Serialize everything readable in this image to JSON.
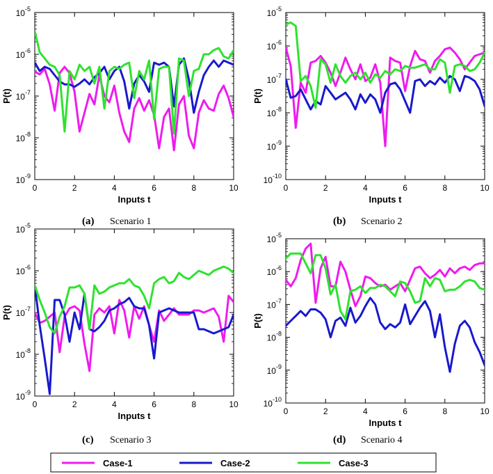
{
  "chart_data": [
    {
      "type": "line",
      "panel": "a",
      "caption_letter": "(a)",
      "caption": "Scenario 1",
      "xlabel": "Inputs t",
      "ylabel": "P(t)",
      "yscale": "log",
      "xlim": [
        0,
        10
      ],
      "ylim_exp": [
        -9,
        -5
      ],
      "xticks": [
        "0",
        "2",
        "4",
        "6",
        "8",
        "10"
      ],
      "yticks_exp": [
        "-9",
        "-8",
        "-7",
        "-6",
        "-5"
      ],
      "x": [
        0,
        0.25,
        0.5,
        0.75,
        1,
        1.25,
        1.5,
        1.75,
        2,
        2.25,
        2.5,
        2.75,
        3,
        3.25,
        3.5,
        3.75,
        4,
        4.25,
        4.5,
        4.75,
        5,
        5.25,
        5.5,
        5.75,
        6,
        6.25,
        6.5,
        6.75,
        7,
        7.25,
        7.5,
        7.75,
        8,
        8.25,
        8.5,
        8.75,
        9,
        9.25,
        9.5,
        9.75,
        10
      ],
      "series": [
        {
          "name": "Case-1",
          "log10": [
            -6.42,
            -6.48,
            -6.35,
            -6.72,
            -7.35,
            -6.45,
            -6.3,
            -6.45,
            -6.9,
            -7.85,
            -7.4,
            -6.95,
            -7.2,
            -6.5,
            -7.0,
            -7.15,
            -6.75,
            -7.4,
            -7.85,
            -8.1,
            -7.3,
            -7.05,
            -7.35,
            -7.1,
            -7.45,
            -8.25,
            -7.5,
            -7.3,
            -8.3,
            -7.2,
            -7.0,
            -7.95,
            -8.25,
            -7.4,
            -7.1,
            -7.3,
            -7.35,
            -6.95,
            -6.75,
            -7.05,
            -7.5
          ]
        },
        {
          "name": "Case-2",
          "log10": [
            -6.2,
            -6.4,
            -6.3,
            -6.35,
            -6.5,
            -6.65,
            -6.72,
            -6.72,
            -6.78,
            -6.7,
            -6.6,
            -6.72,
            -6.55,
            -6.45,
            -6.3,
            -6.6,
            -6.4,
            -6.3,
            -6.65,
            -7.3,
            -6.7,
            -6.5,
            -6.65,
            -6.9,
            -6.2,
            -6.25,
            -6.2,
            -6.3,
            -7.25,
            -6.25,
            -6.1,
            -6.6,
            -7.4,
            -6.9,
            -6.5,
            -6.3,
            -6.15,
            -6.3,
            -6.15,
            -6.2,
            -6.25
          ]
        },
        {
          "name": "Case-3",
          "log10": [
            -5.45,
            -5.95,
            -6.1,
            -6.25,
            -6.3,
            -6.5,
            -7.85,
            -6.4,
            -6.6,
            -6.25,
            -6.4,
            -6.3,
            -6.7,
            -6.3,
            -7.3,
            -6.4,
            -6.3,
            -6.35,
            -6.25,
            -6.2,
            -7.05,
            -6.4,
            -6.6,
            -6.15,
            -7.55,
            -6.35,
            -6.3,
            -6.3,
            -7.9,
            -6.1,
            -6.15,
            -7.0,
            -6.4,
            -6.35,
            -6.0,
            -6.0,
            -5.9,
            -5.85,
            -6.05,
            -6.1,
            -5.9
          ]
        }
      ]
    },
    {
      "type": "line",
      "panel": "b",
      "caption_letter": "(b)",
      "caption": "Scenario 2",
      "xlabel": "Inputs t",
      "ylabel": "P(t)",
      "yscale": "log",
      "xlim": [
        0,
        10
      ],
      "ylim_exp": [
        -10,
        -5
      ],
      "xticks": [
        "0",
        "2",
        "4",
        "6",
        "8",
        "10"
      ],
      "yticks_exp": [
        "-10",
        "-9",
        "-8",
        "-7",
        "-6",
        "-5"
      ],
      "x": [
        0,
        0.25,
        0.5,
        0.75,
        1,
        1.25,
        1.5,
        1.75,
        2,
        2.25,
        2.5,
        2.75,
        3,
        3.25,
        3.5,
        3.75,
        4,
        4.25,
        4.5,
        4.75,
        5,
        5.25,
        5.5,
        5.75,
        6,
        6.25,
        6.5,
        6.75,
        7,
        7.25,
        7.5,
        7.75,
        8,
        8.25,
        8.5,
        8.75,
        9,
        9.25,
        9.5,
        9.75,
        10
      ],
      "series": [
        {
          "name": "Case-1",
          "log10": [
            -6.05,
            -6.6,
            -8.45,
            -7.1,
            -7.4,
            -6.5,
            -6.45,
            -6.3,
            -6.5,
            -6.8,
            -7.2,
            -6.8,
            -6.35,
            -6.7,
            -7.0,
            -6.55,
            -7.05,
            -6.95,
            -6.55,
            -7.1,
            -9.0,
            -6.35,
            -6.45,
            -6.5,
            -7.35,
            -6.6,
            -6.15,
            -6.4,
            -6.45,
            -6.8,
            -6.45,
            -6.3,
            -6.1,
            -6.05,
            -6.2,
            -6.4,
            -6.7,
            -6.5,
            -6.3,
            -6.25,
            -6.2
          ]
        },
        {
          "name": "Case-2",
          "log10": [
            -7.0,
            -7.55,
            -7.5,
            -7.3,
            -7.6,
            -7.9,
            -7.65,
            -7.75,
            -7.2,
            -7.4,
            -7.6,
            -7.5,
            -7.4,
            -7.6,
            -7.9,
            -7.45,
            -7.7,
            -7.45,
            -7.6,
            -8.0,
            -7.4,
            -7.15,
            -7.1,
            -7.3,
            -7.65,
            -8.0,
            -7.05,
            -7.0,
            -7.2,
            -7.05,
            -7.15,
            -6.95,
            -7.1,
            -6.9,
            -7.0,
            -7.35,
            -6.9,
            -6.95,
            -7.05,
            -7.3,
            -7.8
          ]
        },
        {
          "name": "Case-3",
          "log10": [
            -5.35,
            -5.3,
            -5.4,
            -7.05,
            -6.9,
            -7.2,
            -7.85,
            -6.4,
            -6.55,
            -7.1,
            -6.55,
            -6.9,
            -7.1,
            -6.9,
            -6.8,
            -7.0,
            -6.8,
            -7.1,
            -6.85,
            -6.95,
            -6.75,
            -6.85,
            -6.7,
            -6.75,
            -6.6,
            -6.65,
            -6.65,
            -6.6,
            -6.55,
            -6.7,
            -6.7,
            -6.4,
            -6.5,
            -7.4,
            -6.6,
            -6.55,
            -6.6,
            -6.75,
            -6.7,
            -6.5,
            -6.2
          ]
        }
      ]
    },
    {
      "type": "line",
      "panel": "c",
      "caption_letter": "(c)",
      "caption": "Scenario 3",
      "xlabel": "Inputs t",
      "ylabel": "P(t)",
      "yscale": "log",
      "xlim": [
        0,
        10
      ],
      "ylim_exp": [
        -9,
        -5
      ],
      "xticks": [
        "0",
        "2",
        "4",
        "6",
        "8",
        "10"
      ],
      "yticks_exp": [
        "-9",
        "-8",
        "-7",
        "-6",
        "-5"
      ],
      "x": [
        0,
        0.25,
        0.5,
        0.75,
        1,
        1.25,
        1.5,
        1.75,
        2,
        2.25,
        2.5,
        2.75,
        3,
        3.25,
        3.5,
        3.75,
        4,
        4.25,
        4.5,
        4.75,
        5,
        5.25,
        5.5,
        5.75,
        6,
        6.25,
        6.5,
        6.75,
        7,
        7.25,
        7.5,
        7.75,
        8,
        8.25,
        8.5,
        8.75,
        9,
        9.25,
        9.5,
        9.75,
        10
      ],
      "series": [
        {
          "name": "Case-1",
          "log10": [
            -7.0,
            -7.25,
            -7.2,
            -7.1,
            -7.0,
            -7.95,
            -7.1,
            -6.9,
            -6.85,
            -6.95,
            -7.75,
            -8.4,
            -7.05,
            -6.9,
            -7.0,
            -6.85,
            -7.5,
            -6.7,
            -6.95,
            -7.6,
            -6.85,
            -7.15,
            -6.85,
            -7.3,
            -7.7,
            -6.95,
            -7.2,
            -7.05,
            -6.9,
            -7.05,
            -7.05,
            -7.05,
            -6.95,
            -6.95,
            -7.0,
            -6.95,
            -6.9,
            -7.1,
            -7.7,
            -6.6,
            -6.75
          ]
        },
        {
          "name": "Case-2",
          "log10": [
            -6.35,
            -7.3,
            -8.1,
            -8.95,
            -6.7,
            -6.7,
            -7.05,
            -7.7,
            -7.0,
            -7.4,
            -6.55,
            -7.4,
            -7.45,
            -7.35,
            -7.2,
            -6.95,
            -6.9,
            -6.8,
            -6.75,
            -6.65,
            -6.85,
            -6.9,
            -6.9,
            -7.3,
            -8.1,
            -7.0,
            -6.95,
            -6.9,
            -6.95,
            -7.0,
            -7.0,
            -7.0,
            -7.0,
            -7.4,
            -7.4,
            -7.45,
            -7.5,
            -7.45,
            -7.4,
            -7.35,
            -7.05
          ]
        },
        {
          "name": "Case-3",
          "log10": [
            -6.35,
            -6.7,
            -7.0,
            -7.35,
            -7.5,
            -7.1,
            -6.85,
            -6.4,
            -6.4,
            -6.35,
            -6.55,
            -7.4,
            -6.35,
            -6.55,
            -6.5,
            -6.4,
            -6.35,
            -6.3,
            -6.3,
            -6.2,
            -6.35,
            -6.4,
            -6.6,
            -6.9,
            -6.3,
            -6.2,
            -6.15,
            -6.3,
            -6.25,
            -6.05,
            -6.15,
            -6.2,
            -6.1,
            -6.0,
            -6.05,
            -6.1,
            -6.0,
            -5.95,
            -5.9,
            -5.95,
            -6.05
          ]
        }
      ]
    },
    {
      "type": "line",
      "panel": "d",
      "caption_letter": "(d)",
      "caption": "Scenario 4",
      "xlabel": "Inputs t",
      "ylabel": "P(t)",
      "yscale": "log",
      "xlim": [
        0,
        10
      ],
      "ylim_exp": [
        -10,
        -5
      ],
      "xticks": [
        "0",
        "2",
        "4",
        "6",
        "8",
        "10"
      ],
      "yticks_exp": [
        "-10",
        "-9",
        "-8",
        "-7",
        "-6",
        "-5"
      ],
      "x": [
        0,
        0.25,
        0.5,
        0.75,
        1,
        1.25,
        1.5,
        1.75,
        2,
        2.25,
        2.5,
        2.75,
        3,
        3.25,
        3.5,
        3.75,
        4,
        4.25,
        4.5,
        4.75,
        5,
        5.25,
        5.5,
        5.75,
        6,
        6.25,
        6.5,
        6.75,
        7,
        7.25,
        7.5,
        7.75,
        8,
        8.25,
        8.5,
        8.75,
        9,
        9.25,
        9.5,
        9.75,
        10
      ],
      "series": [
        {
          "name": "Case-1",
          "log10": [
            -6.25,
            -6.45,
            -6.2,
            -5.65,
            -5.3,
            -5.15,
            -6.95,
            -5.9,
            -5.55,
            -6.45,
            -6.45,
            -5.7,
            -6.0,
            -6.55,
            -7.05,
            -6.75,
            -6.15,
            -6.2,
            -6.35,
            -6.45,
            -6.4,
            -6.55,
            -6.45,
            -6.35,
            -6.6,
            -6.25,
            -5.9,
            -5.85,
            -6.05,
            -6.2,
            -6.1,
            -5.95,
            -6.15,
            -5.9,
            -6.05,
            -5.9,
            -5.85,
            -5.95,
            -5.8,
            -5.75,
            -5.75
          ]
        },
        {
          "name": "Case-2",
          "log10": [
            -7.65,
            -7.5,
            -7.35,
            -7.2,
            -7.35,
            -7.15,
            -7.15,
            -7.25,
            -7.45,
            -8.0,
            -7.5,
            -7.4,
            -7.65,
            -7.1,
            -7.55,
            -7.35,
            -7.05,
            -6.8,
            -7.0,
            -7.55,
            -7.75,
            -7.6,
            -7.7,
            -7.55,
            -7.0,
            -7.6,
            -7.35,
            -7.1,
            -6.9,
            -7.2,
            -8.0,
            -7.3,
            -8.3,
            -9.05,
            -8.2,
            -7.65,
            -7.5,
            -7.7,
            -8.15,
            -8.45,
            -8.85
          ]
        },
        {
          "name": "Case-3",
          "log10": [
            -5.6,
            -5.45,
            -5.45,
            -5.45,
            -5.75,
            -6.05,
            -5.5,
            -5.5,
            -5.9,
            -6.7,
            -6.4,
            -7.2,
            -7.45,
            -6.6,
            -6.55,
            -6.45,
            -6.65,
            -6.5,
            -6.5,
            -6.4,
            -6.45,
            -6.6,
            -6.75,
            -6.3,
            -6.35,
            -6.6,
            -6.95,
            -6.9,
            -6.2,
            -6.45,
            -6.2,
            -6.25,
            -6.6,
            -6.55,
            -6.55,
            -6.45,
            -6.3,
            -6.25,
            -6.3,
            -6.5,
            -6.55
          ]
        }
      ]
    }
  ],
  "colors": {
    "Case-1": "#EE1BEE",
    "Case-2": "#1919CC",
    "Case-3": "#2EE22E"
  },
  "legend": {
    "placement": "bottom",
    "entries": [
      "Case-1",
      "Case-2",
      "Case-3"
    ]
  }
}
